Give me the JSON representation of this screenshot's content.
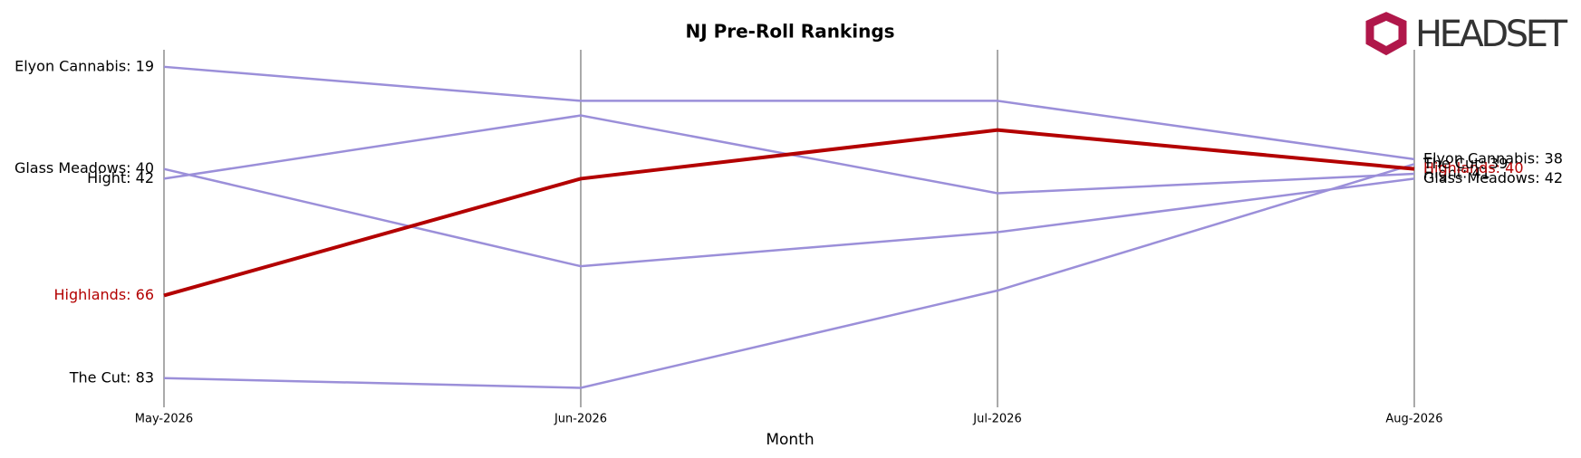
{
  "chart_data": {
    "type": "bump",
    "title": "NJ Pre-Roll Rankings",
    "xlabel": "Month",
    "logo": "HEADSET",
    "categories": [
      "May-2026",
      "Jun-2026",
      "Jul-2026",
      "Aug-2026"
    ],
    "ylim": [
      15.5,
      89
    ],
    "y_inverted": true,
    "grid": true,
    "series": [
      {
        "name": "Elyon Cannabis",
        "color": "#9b8fd9",
        "values": [
          19,
          26,
          26,
          38
        ],
        "value_labels": [
          "Elyon Cannabis: 19",
          null,
          null,
          "Elyon Cannabis: 38"
        ]
      },
      {
        "name": "Hight",
        "color": "#9b8fd9",
        "values": [
          42,
          29,
          45,
          41
        ],
        "value_labels": [
          "Hight: 42",
          null,
          null,
          "Hight: 41"
        ]
      },
      {
        "name": "Highlands",
        "color": "#b30000",
        "highlight": true,
        "values": [
          66,
          42,
          32,
          40
        ],
        "value_labels": [
          "Highlands: 66",
          null,
          null,
          "Highlands: 40"
        ]
      },
      {
        "name": "Glass Meadows",
        "color": "#9b8fd9",
        "values": [
          40,
          60,
          53,
          42
        ],
        "value_labels": [
          "Glass Meadows: 40",
          null,
          null,
          "Glass Meadows: 42"
        ]
      },
      {
        "name": "The Cut",
        "color": "#9b8fd9",
        "values": [
          83,
          85,
          65,
          39
        ],
        "value_labels": [
          "The Cut: 83",
          null,
          null,
          "The Cut: 39"
        ]
      }
    ]
  }
}
